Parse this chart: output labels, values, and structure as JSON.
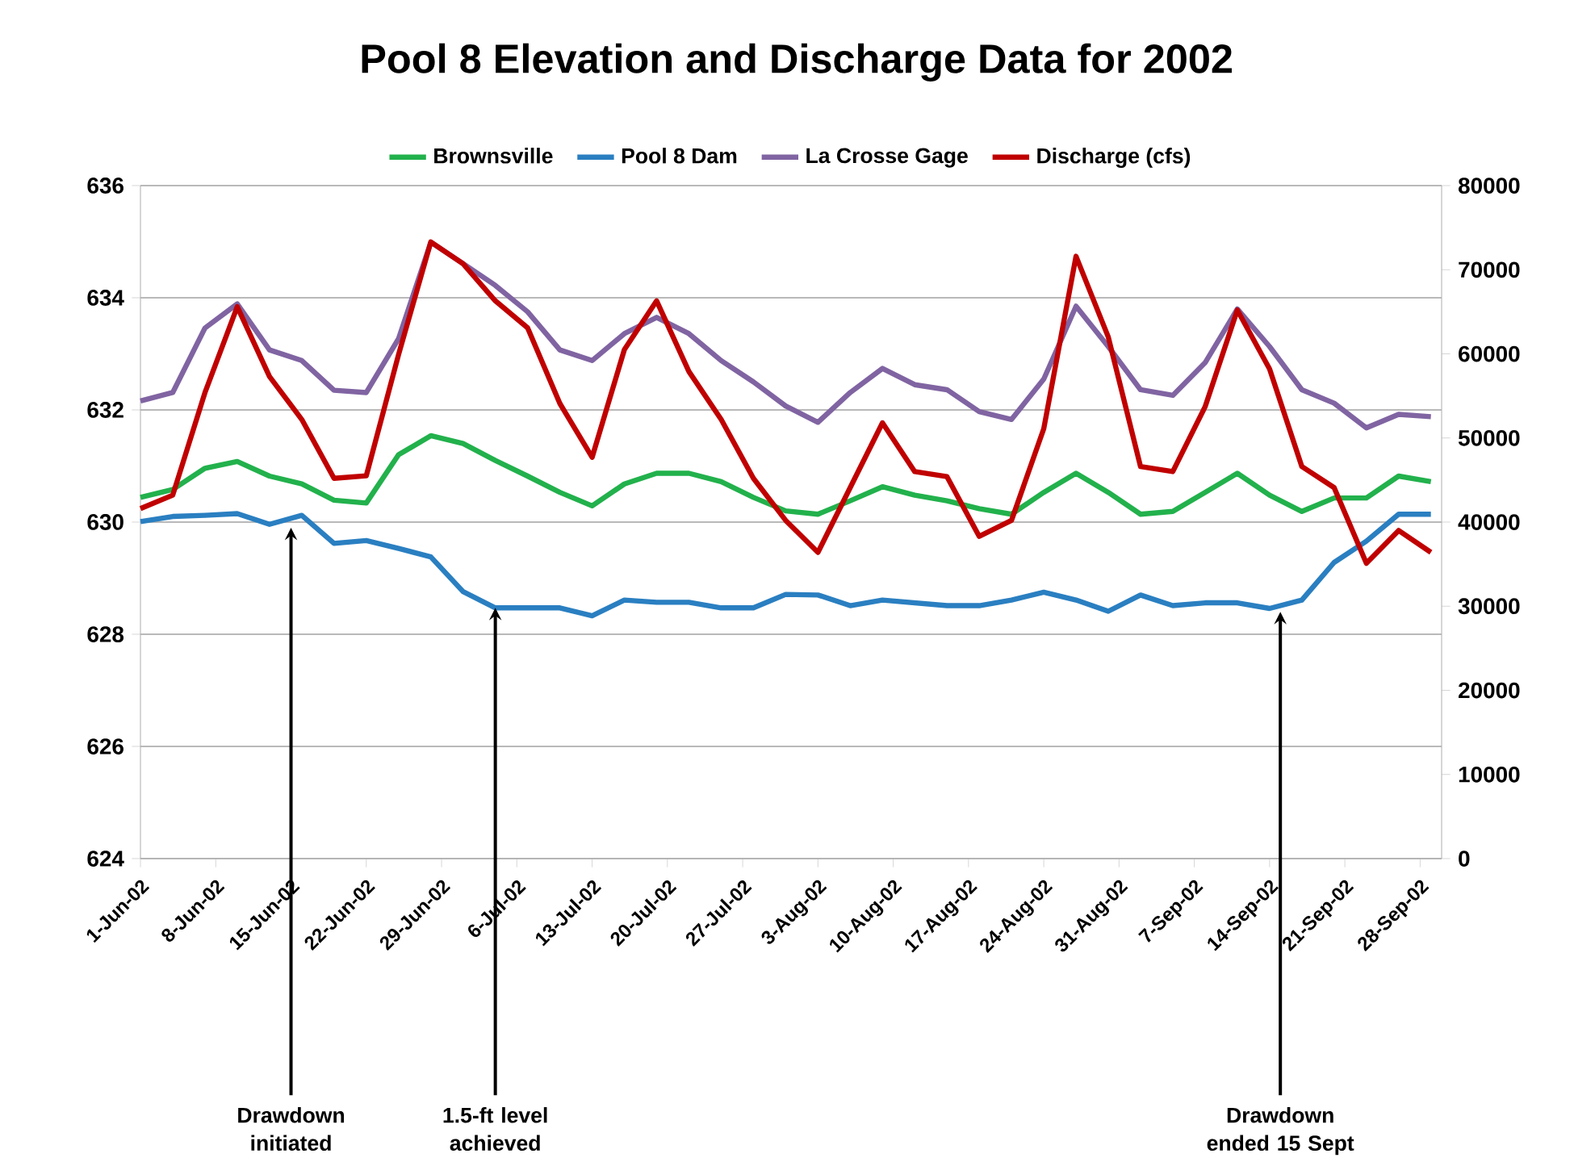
{
  "chart_data": {
    "type": "line",
    "title": "Pool 8 Elevation and Discharge Data for 2002",
    "x": [
      "2002-06-01",
      "2002-06-04",
      "2002-06-07",
      "2002-06-10",
      "2002-06-13",
      "2002-06-16",
      "2002-06-19",
      "2002-06-22",
      "2002-06-25",
      "2002-06-28",
      "2002-07-01",
      "2002-07-04",
      "2002-07-07",
      "2002-07-10",
      "2002-07-13",
      "2002-07-16",
      "2002-07-19",
      "2002-07-22",
      "2002-07-25",
      "2002-07-28",
      "2002-07-31",
      "2002-08-03",
      "2002-08-06",
      "2002-08-09",
      "2002-08-12",
      "2002-08-15",
      "2002-08-18",
      "2002-08-21",
      "2002-08-24",
      "2002-08-27",
      "2002-08-30",
      "2002-09-02",
      "2002-09-05",
      "2002-09-08",
      "2002-09-11",
      "2002-09-14",
      "2002-09-17",
      "2002-09-20",
      "2002-09-23",
      "2002-09-26",
      "2002-09-29"
    ],
    "series": [
      {
        "name": "Brownsville",
        "color": "#22b14c",
        "values": [
          630.44,
          630.58,
          630.96,
          631.08,
          630.82,
          630.68,
          630.39,
          630.34,
          631.2,
          631.54,
          631.4,
          631.1,
          630.82,
          630.53,
          630.29,
          630.68,
          630.87,
          630.87,
          630.72,
          630.44,
          630.2,
          630.14,
          630.38,
          630.63,
          630.48,
          630.38,
          630.24,
          630.14,
          630.53,
          630.87,
          630.53,
          630.14,
          630.19,
          630.53,
          630.87,
          630.48,
          630.19,
          630.43,
          630.43,
          630.82,
          630.72
        ]
      },
      {
        "name": "Pool 8 Dam",
        "color": "#2a7fc1",
        "values": [
          630.01,
          630.1,
          630.12,
          630.15,
          629.96,
          630.12,
          629.62,
          629.67,
          629.53,
          629.38,
          628.76,
          628.47,
          628.47,
          628.47,
          628.33,
          628.61,
          628.57,
          628.57,
          628.47,
          628.47,
          628.71,
          628.7,
          628.51,
          628.61,
          628.56,
          628.51,
          628.51,
          628.61,
          628.75,
          628.61,
          628.41,
          628.7,
          628.51,
          628.56,
          628.56,
          628.46,
          628.61,
          629.28,
          629.66,
          630.14,
          630.14
        ]
      },
      {
        "name": "La Crosse Gage",
        "color": "#8064a2",
        "values": [
          632.16,
          632.31,
          633.46,
          633.89,
          633.07,
          632.88,
          632.35,
          632.31,
          633.27,
          634.99,
          634.61,
          634.22,
          633.75,
          633.07,
          632.88,
          633.36,
          633.65,
          633.36,
          632.88,
          632.5,
          632.07,
          631.78,
          632.31,
          632.74,
          632.45,
          632.36,
          631.97,
          631.83,
          632.55,
          633.85,
          633.13,
          632.36,
          632.26,
          632.84,
          633.8,
          633.13,
          632.36,
          632.12,
          631.68,
          631.92,
          631.88
        ]
      },
      {
        "name": "Discharge  (cfs)",
        "color": "#c00000",
        "axis": "y2",
        "values": [
          41600,
          43200,
          55400,
          65600,
          57300,
          52200,
          45200,
          45500,
          59900,
          73300,
          70700,
          66300,
          63100,
          54100,
          47700,
          60500,
          66300,
          57900,
          52200,
          45200,
          40200,
          36400,
          44100,
          51800,
          46000,
          45400,
          38300,
          40200,
          51100,
          71600,
          62000,
          46600,
          46000,
          53700,
          65200,
          58200,
          46600,
          44100,
          35100,
          39000,
          36400
        ]
      }
    ],
    "xlim": [
      "2002-06-01",
      "2002-09-30"
    ],
    "xticks": [
      {
        "value": "2002-06-01",
        "label": "1-Jun-02"
      },
      {
        "value": "2002-06-08",
        "label": "8-Jun-02"
      },
      {
        "value": "2002-06-15",
        "label": "15-Jun-02"
      },
      {
        "value": "2002-06-22",
        "label": "22-Jun-02"
      },
      {
        "value": "2002-06-29",
        "label": "29-Jun-02"
      },
      {
        "value": "2002-07-06",
        "label": "6-Jul-02"
      },
      {
        "value": "2002-07-13",
        "label": "13-Jul-02"
      },
      {
        "value": "2002-07-20",
        "label": "20-Jul-02"
      },
      {
        "value": "2002-07-27",
        "label": "27-Jul-02"
      },
      {
        "value": "2002-08-03",
        "label": "3-Aug-02"
      },
      {
        "value": "2002-08-10",
        "label": "10-Aug-02"
      },
      {
        "value": "2002-08-17",
        "label": "17-Aug-02"
      },
      {
        "value": "2002-08-24",
        "label": "24-Aug-02"
      },
      {
        "value": "2002-08-31",
        "label": "31-Aug-02"
      },
      {
        "value": "2002-09-07",
        "label": "7-Sep-02"
      },
      {
        "value": "2002-09-14",
        "label": "14-Sep-02"
      },
      {
        "value": "2002-09-21",
        "label": "21-Sep-02"
      },
      {
        "value": "2002-09-28",
        "label": "28-Sep-02"
      }
    ],
    "ylim": [
      624,
      636
    ],
    "yticks": [
      624,
      626,
      628,
      630,
      632,
      634,
      636
    ],
    "y2lim": [
      0,
      80000
    ],
    "y2ticks": [
      0,
      10000,
      20000,
      30000,
      40000,
      50000,
      60000,
      70000,
      80000
    ],
    "annotations": [
      {
        "text": "Drawdown initiated",
        "x": "2002-06-15",
        "y": 629.9
      },
      {
        "text": "1.5-ft  level achieved",
        "x": "2002-07-04",
        "y": 628.47
      },
      {
        "text": "Drawdown ended 15 Sept",
        "x": "2002-09-15",
        "y": 628.4
      }
    ],
    "grid": "y",
    "legend": "top",
    "marker": "none",
    "line_style": "solid"
  }
}
